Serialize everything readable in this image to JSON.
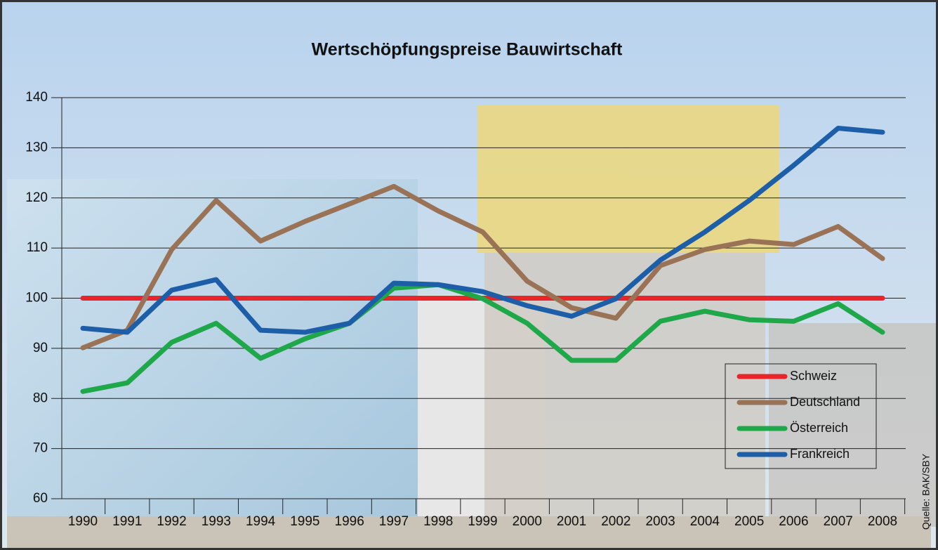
{
  "chart_data": {
    "type": "line",
    "title": "Wertschöpfungspreise Bauwirtschaft",
    "source": "Quelle: BAK/SBY",
    "categories": [
      "1990",
      "1991",
      "1992",
      "1993",
      "1994",
      "1995",
      "1996",
      "1997",
      "1998",
      "1999",
      "2000",
      "2001",
      "2002",
      "2003",
      "2004",
      "2005",
      "2006",
      "2007",
      "2008"
    ],
    "ylim": [
      60,
      140
    ],
    "yticks": [
      60,
      70,
      80,
      90,
      100,
      110,
      120,
      130,
      140
    ],
    "grid": true,
    "legend": "lower right",
    "series": [
      {
        "name": "Schweiz",
        "color": "#e8262a",
        "values": [
          100,
          100,
          100,
          100,
          100,
          100,
          100,
          100,
          100,
          100,
          100,
          100,
          100,
          100,
          100,
          100,
          100,
          100,
          100
        ]
      },
      {
        "name": "Deutschland",
        "color": "#9a7356",
        "values": [
          90.1,
          93.6,
          109.7,
          119.5,
          111.4,
          115.3,
          118.8,
          122.3,
          117.4,
          113.2,
          103.4,
          98.1,
          96,
          106.5,
          109.7,
          111.4,
          110.7,
          114.3,
          107.9
        ]
      },
      {
        "name": "Österreich",
        "color": "#1fa84a",
        "values": [
          81.4,
          83.1,
          91.2,
          95,
          88,
          91.9,
          95,
          102,
          102.7,
          99.9,
          95,
          87.6,
          87.6,
          95.4,
          97.4,
          95.7,
          95.4,
          98.9,
          93.2
        ]
      },
      {
        "name": "Frankreich",
        "color": "#1d5ea8",
        "values": [
          94,
          93.2,
          101.6,
          103.7,
          93.6,
          93.2,
          95,
          103,
          102.7,
          101.3,
          98.5,
          96.4,
          99.9,
          107.6,
          113.2,
          119.5,
          126.5,
          133.9,
          133.1
        ]
      }
    ]
  }
}
